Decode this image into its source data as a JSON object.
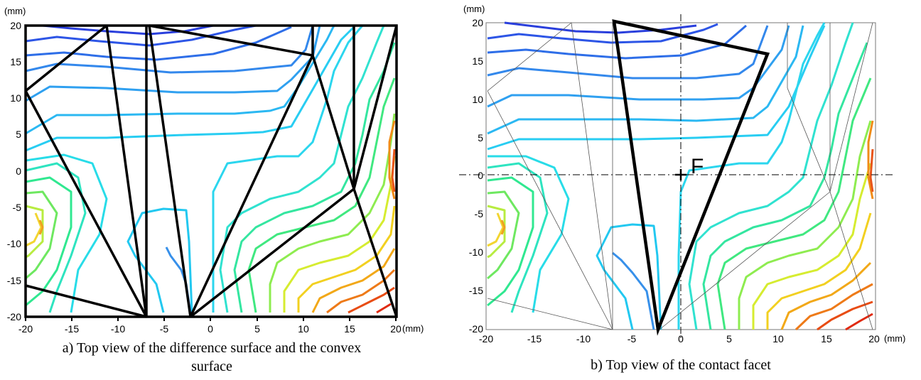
{
  "panel_a": {
    "y_unit": "(mm)",
    "x_unit": "(mm)",
    "x_ticks": [
      "-20",
      "-15",
      "-10",
      "-5",
      "0",
      "5",
      "10",
      "15",
      "20"
    ],
    "y_ticks": [
      "20",
      "15",
      "10",
      "5",
      "0",
      "-5",
      "-10",
      "-15",
      "-20"
    ],
    "caption_line1": "a) Top view of the difference surface and the convex",
    "caption_line2": "surface"
  },
  "panel_b": {
    "y_unit": "(mm)",
    "x_unit": "(mm)",
    "x_ticks": [
      "-20",
      "-15",
      "-10",
      "-5",
      "0",
      "5",
      "10",
      "15",
      "20"
    ],
    "y_ticks": [
      "20",
      "15",
      "10",
      "5",
      "0",
      "-5",
      "-10",
      "-15",
      "-20"
    ],
    "point_label": "F",
    "caption": "b) Top view of the contact facet"
  },
  "colors": {
    "blue": "#1f3fe0",
    "cyan": "#26d0f0",
    "green": "#2ee08a",
    "yellow": "#f0f020",
    "red": "#e02010",
    "frame": "#000000"
  }
}
